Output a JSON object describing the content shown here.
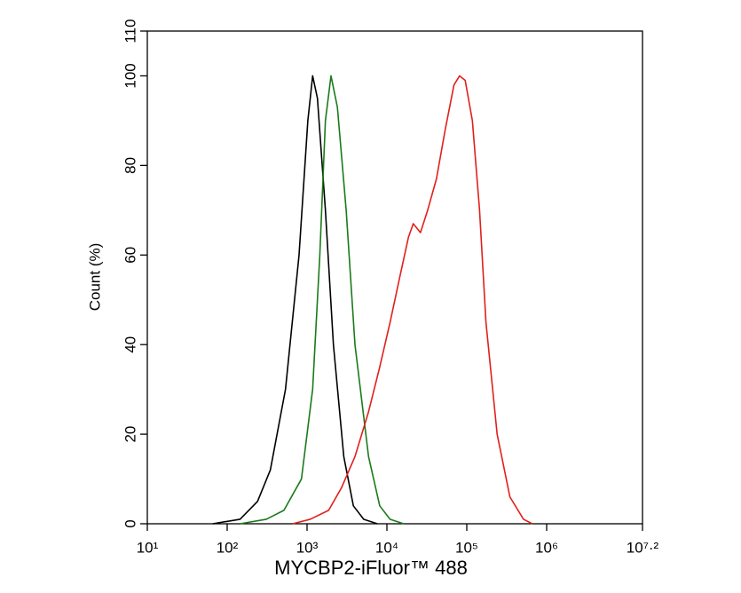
{
  "chart_data": {
    "type": "line",
    "xlabel": "MYCBP2-iFluor™ 488",
    "ylabel": "Count  (%)",
    "xscale": "log",
    "xlim": [
      10,
      15848932
    ],
    "xticks": [
      {
        "value": 10,
        "label": "10¹"
      },
      {
        "value": 100,
        "label": "10²"
      },
      {
        "value": 1000,
        "label": "10³"
      },
      {
        "value": 10000,
        "label": "10⁴"
      },
      {
        "value": 100000,
        "label": "10⁵"
      },
      {
        "value": 1000000,
        "label": "10⁶"
      },
      {
        "value": 15848932,
        "label": "10⁷·²"
      }
    ],
    "ylim": [
      0,
      110
    ],
    "yticks": [
      0,
      20,
      40,
      60,
      80,
      100,
      110
    ],
    "series": [
      {
        "color": "#000000",
        "x": [
          66,
          145,
          240,
          347,
          537,
          794,
          1023,
          1175,
          1349,
          1698,
          2138,
          2884,
          3802,
          5129,
          7586
        ],
        "values": [
          0,
          1,
          5,
          12,
          30,
          60,
          90,
          100,
          95,
          70,
          40,
          15,
          4,
          1,
          0
        ]
      },
      {
        "color": "#1a7a1a",
        "x": [
          145,
          309,
          513,
          851,
          1175,
          1445,
          1698,
          1995,
          2399,
          3090,
          3981,
          5888,
          8128,
          10965,
          16218
        ],
        "values": [
          0,
          1,
          3,
          10,
          30,
          60,
          90,
          100,
          93,
          70,
          40,
          15,
          4,
          1,
          0
        ]
      },
      {
        "color": "#e0201b",
        "x": [
          661,
          1096,
          1862,
          2692,
          3981,
          5888,
          8128,
          10965,
          14454,
          18621,
          21380,
          26303,
          32359,
          41687,
          53703,
          69183,
          81283,
          95499,
          117490,
          144544,
          173780,
          239883,
          346737,
          512861,
          660693
        ],
        "values": [
          0,
          1,
          3,
          8,
          15,
          25,
          35,
          45,
          55,
          64,
          67,
          65,
          70,
          77,
          88,
          98,
          100,
          99,
          90,
          70,
          45,
          20,
          6,
          1,
          0
        ]
      }
    ]
  }
}
